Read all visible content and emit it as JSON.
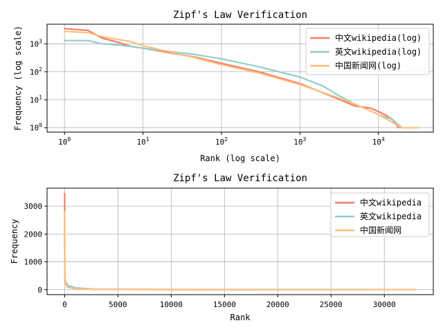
{
  "chart_data": [
    {
      "type": "line",
      "title": "Zipf's Law Verification",
      "xlabel": "Rank (log scale)",
      "ylabel": "Frequency (log scale)",
      "xscale": "log",
      "yscale": "log",
      "xlim": [
        0.6,
        50000
      ],
      "ylim": [
        0.7,
        5000
      ],
      "xticks": [
        {
          "value": 1,
          "base": "10",
          "exp": "0"
        },
        {
          "value": 10,
          "base": "10",
          "exp": "1"
        },
        {
          "value": 100,
          "base": "10",
          "exp": "2"
        },
        {
          "value": 1000,
          "base": "10",
          "exp": "3"
        },
        {
          "value": 10000,
          "base": "10",
          "exp": "4"
        }
      ],
      "yticks": [
        {
          "value": 1,
          "base": "10",
          "exp": "0"
        },
        {
          "value": 10,
          "base": "10",
          "exp": "1"
        },
        {
          "value": 100,
          "base": "10",
          "exp": "2"
        },
        {
          "value": 1000,
          "base": "10",
          "exp": "3"
        }
      ],
      "grid": true,
      "legend": "top-right",
      "series": [
        {
          "name": "中文wikipedia(log)",
          "color": "#f47c6b",
          "x": [
            1,
            2,
            3,
            5,
            7,
            10,
            20,
            50,
            100,
            300,
            1000,
            3000,
            5000,
            8000,
            12000,
            15000,
            18000
          ],
          "y": [
            3500,
            3000,
            1600,
            1100,
            800,
            700,
            500,
            320,
            200,
            100,
            38,
            11,
            6,
            5,
            3,
            2,
            1
          ]
        },
        {
          "name": "英文wikipedia(log)",
          "color": "#8ecfc9",
          "x": [
            1,
            2,
            3,
            5,
            10,
            20,
            50,
            100,
            300,
            1000,
            2000,
            3000,
            5000,
            10000,
            15000,
            20000
          ],
          "y": [
            1300,
            1300,
            1000,
            900,
            700,
            550,
            400,
            290,
            150,
            65,
            30,
            15,
            7,
            3,
            2,
            1
          ]
        },
        {
          "name": "中国新闻网(log)",
          "color": "#ffbe7a",
          "x": [
            1,
            2,
            3,
            5,
            7,
            10,
            20,
            50,
            100,
            300,
            1000,
            3000,
            5000,
            10000,
            20000,
            33000
          ],
          "y": [
            2800,
            2500,
            1800,
            1400,
            1200,
            850,
            550,
            300,
            180,
            90,
            35,
            12,
            7,
            3,
            1,
            1
          ]
        }
      ]
    },
    {
      "type": "line",
      "title": "Zipf's Law Verification",
      "xlabel": "Rank",
      "ylabel": "Frequency",
      "xscale": "linear",
      "yscale": "linear",
      "xlim": [
        -1650,
        34600
      ],
      "ylim": [
        -180,
        3650
      ],
      "xticks": [
        0,
        5000,
        10000,
        15000,
        20000,
        25000,
        30000
      ],
      "yticks": [
        0,
        1000,
        2000,
        3000
      ],
      "grid": true,
      "legend": "top-right",
      "series": [
        {
          "name": "中文wikipedia",
          "color": "#f47c6b",
          "x": [
            1,
            10,
            30,
            100,
            300,
            1000,
            3000,
            10000,
            18000
          ],
          "y": [
            3450,
            700,
            330,
            200,
            95,
            38,
            11,
            3,
            1
          ]
        },
        {
          "name": "英文wikipedia",
          "color": "#8ecfc9",
          "x": [
            1,
            10,
            30,
            100,
            300,
            1000,
            3000,
            10000,
            20000,
            28500
          ],
          "y": [
            2650,
            700,
            400,
            290,
            150,
            65,
            15,
            3,
            1,
            1
          ]
        },
        {
          "name": "中国新闻网",
          "color": "#ffbe7a",
          "x": [
            1,
            10,
            30,
            100,
            300,
            1000,
            3000,
            10000,
            20000,
            33000
          ],
          "y": [
            2800,
            850,
            420,
            180,
            90,
            35,
            12,
            3,
            1,
            1
          ]
        }
      ]
    }
  ]
}
